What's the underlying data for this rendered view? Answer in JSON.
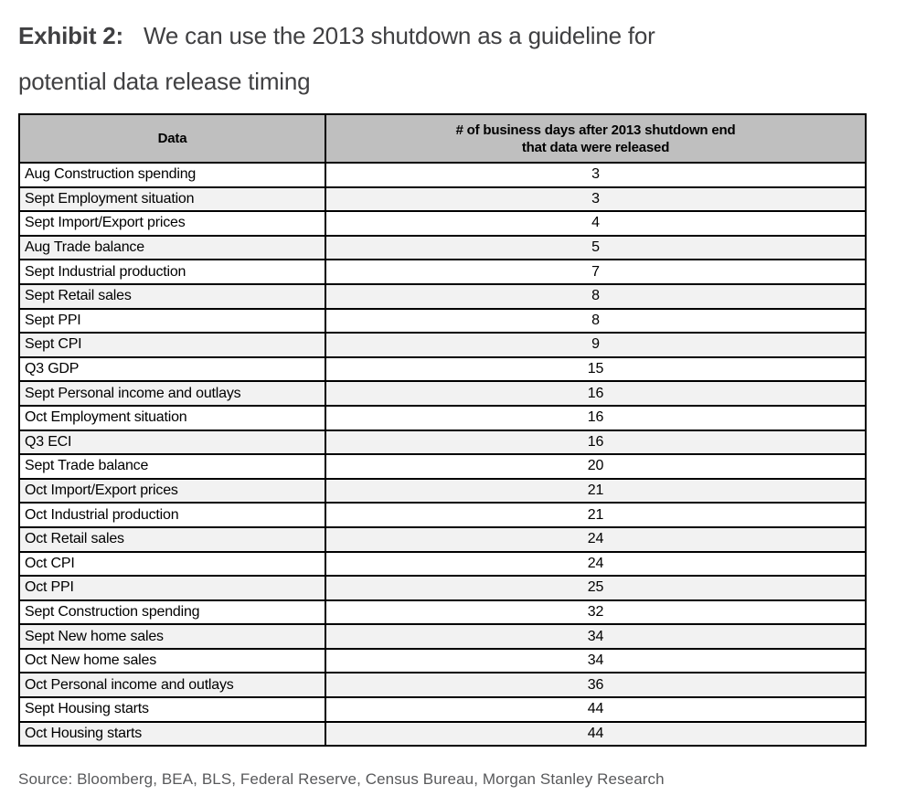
{
  "title": {
    "exhibit_label": "Exhibit 2:",
    "text": "We can use the 2013 shutdown as a guideline for potential data release timing"
  },
  "table": {
    "headers": {
      "data": "Data",
      "days_line1": "# of business days after 2013 shutdown end",
      "days_line2": "that data were released"
    },
    "rows": [
      {
        "label": "Aug Construction spending",
        "days": "3"
      },
      {
        "label": "Sept Employment situation",
        "days": "3"
      },
      {
        "label": "Sept Import/Export prices",
        "days": "4"
      },
      {
        "label": "Aug Trade balance",
        "days": "5"
      },
      {
        "label": "Sept Industrial production",
        "days": "7"
      },
      {
        "label": "Sept Retail sales",
        "days": "8"
      },
      {
        "label": "Sept PPI",
        "days": "8"
      },
      {
        "label": "Sept CPI",
        "days": "9"
      },
      {
        "label": "Q3 GDP",
        "days": "15"
      },
      {
        "label": "Sept Personal income and outlays",
        "days": "16"
      },
      {
        "label": "Oct Employment situation",
        "days": "16"
      },
      {
        "label": "Q3 ECI",
        "days": "16"
      },
      {
        "label": "Sept Trade balance",
        "days": "20"
      },
      {
        "label": "Oct Import/Export prices",
        "days": "21"
      },
      {
        "label": "Oct Industrial production",
        "days": "21"
      },
      {
        "label": "Oct Retail sales",
        "days": "24"
      },
      {
        "label": "Oct CPI",
        "days": "24"
      },
      {
        "label": "Oct PPI",
        "days": "25"
      },
      {
        "label": "Sept Construction spending",
        "days": "32"
      },
      {
        "label": "Sept New home sales",
        "days": "34"
      },
      {
        "label": "Oct New home sales",
        "days": "34"
      },
      {
        "label": "Oct Personal income and outlays",
        "days": "36"
      },
      {
        "label": "Sept Housing starts",
        "days": "44"
      },
      {
        "label": "Oct Housing starts",
        "days": "44"
      }
    ]
  },
  "source": "Source: Bloomberg, BEA, BLS, Federal Reserve, Census Bureau, Morgan Stanley Research",
  "colors": {
    "header_bg": "#bfbfbf",
    "alt_row_bg": "#f2f2f2",
    "border": "#000000",
    "title_text": "#404042",
    "source_text": "#58595b"
  },
  "chart_data": {
    "type": "table",
    "title": "Exhibit 2: We can use the 2013 shutdown as a guideline for potential data release timing",
    "columns": [
      "Data",
      "# of business days after 2013 shutdown end that data were released"
    ],
    "categories": [
      "Aug Construction spending",
      "Sept Employment situation",
      "Sept Import/Export prices",
      "Aug Trade balance",
      "Sept Industrial production",
      "Sept Retail sales",
      "Sept PPI",
      "Sept CPI",
      "Q3 GDP",
      "Sept Personal income and outlays",
      "Oct Employment situation",
      "Q3 ECI",
      "Sept Trade balance",
      "Oct Import/Export prices",
      "Oct Industrial production",
      "Oct Retail sales",
      "Oct CPI",
      "Oct PPI",
      "Sept Construction spending",
      "Sept New home sales",
      "Oct New home sales",
      "Oct Personal income and outlays",
      "Sept Housing starts",
      "Oct Housing starts"
    ],
    "values": [
      3,
      3,
      4,
      5,
      7,
      8,
      8,
      9,
      15,
      16,
      16,
      16,
      20,
      21,
      21,
      24,
      24,
      25,
      32,
      34,
      34,
      36,
      44,
      44
    ],
    "source": "Source: Bloomberg, BEA, BLS, Federal Reserve, Census Bureau, Morgan Stanley Research"
  }
}
